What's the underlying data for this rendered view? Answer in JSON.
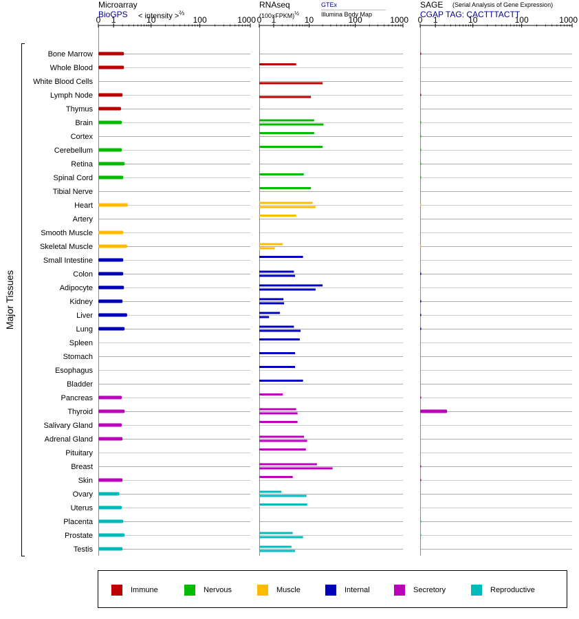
{
  "colors": {
    "immune": "#bb0000",
    "nervous": "#00bb00",
    "muscle": "#ffbb00",
    "internal": "#0000bb",
    "secretory": "#bb00bb",
    "reproductive": "#00bbbb"
  },
  "headers": {
    "microarray_title": "Microarray",
    "microarray_source": "BioGPS",
    "microarray_unit": "< intensity >",
    "microarray_exponent": "⅔",
    "rnaseq_title": "RNAseq",
    "rnaseq_unit": "(100×FPKM)",
    "rnaseq_exponent": "½",
    "rnaseq_source1": "GTEx",
    "rnaseq_source2": "Illumina Body Map",
    "sage_title": "SAGE",
    "sage_subtitle": "(Serial Analysis of Gene Expression)",
    "sage_tag": "CGAP TAG: CACTTTACTT"
  },
  "legend": [
    {
      "label": "Immune",
      "group": "immune"
    },
    {
      "label": "Nervous",
      "group": "nervous"
    },
    {
      "label": "Muscle",
      "group": "muscle"
    },
    {
      "label": "Internal",
      "group": "internal"
    },
    {
      "label": "Secretory",
      "group": "secretory"
    },
    {
      "label": "Reproductive",
      "group": "reproductive"
    }
  ],
  "chart_data": {
    "type": "bar",
    "orientation": "horizontal",
    "ylabel": "Major Tissues",
    "scale": "log1p",
    "axis_ticks": [
      "0",
      "1",
      "10",
      "100",
      "1000"
    ],
    "xlim": [
      0,
      1000
    ],
    "panels": [
      "Microarray",
      "RNAseq",
      "SAGE"
    ],
    "tissues": [
      {
        "name": "Bone Marrow",
        "group": "immune",
        "microarray": 2.2,
        "gtex": null,
        "ibm": null,
        "sage": 0.02
      },
      {
        "name": "Whole Blood",
        "group": "immune",
        "microarray": 2.2,
        "gtex": 4.9,
        "ibm": null,
        "sage": null
      },
      {
        "name": "White Blood Cells",
        "group": "immune",
        "microarray": null,
        "gtex": null,
        "ibm": 20,
        "sage": null
      },
      {
        "name": "Lymph Node",
        "group": "immune",
        "microarray": 2.0,
        "gtex": null,
        "ibm": 11,
        "sage": 0.02
      },
      {
        "name": "Thymus",
        "group": "immune",
        "microarray": 1.8,
        "gtex": null,
        "ibm": null,
        "sage": null
      },
      {
        "name": "Brain",
        "group": "nervous",
        "microarray": 1.9,
        "gtex": 13,
        "ibm": 21,
        "sage": 0.02
      },
      {
        "name": "Cortex",
        "group": "nervous",
        "microarray": null,
        "gtex": 13,
        "ibm": null,
        "sage": 0.02
      },
      {
        "name": "Cerebellum",
        "group": "nervous",
        "microarray": 1.9,
        "gtex": 20,
        "ibm": null,
        "sage": 0.02
      },
      {
        "name": "Retina",
        "group": "nervous",
        "microarray": 2.3,
        "gtex": null,
        "ibm": null,
        "sage": 0.02
      },
      {
        "name": "Spinal Cord",
        "group": "nervous",
        "microarray": 2.1,
        "gtex": 7.5,
        "ibm": null,
        "sage": 0.02
      },
      {
        "name": "Tibial Nerve",
        "group": "nervous",
        "microarray": null,
        "gtex": 11,
        "ibm": null,
        "sage": null
      },
      {
        "name": "Heart",
        "group": "muscle",
        "microarray": 2.8,
        "gtex": 12,
        "ibm": 14,
        "sage": 0.01
      },
      {
        "name": "Artery",
        "group": "muscle",
        "microarray": null,
        "gtex": 4.9,
        "ibm": null,
        "sage": null
      },
      {
        "name": "Smooth Muscle",
        "group": "muscle",
        "microarray": 2.1,
        "gtex": null,
        "ibm": null,
        "sage": null
      },
      {
        "name": "Skeletal Muscle",
        "group": "muscle",
        "microarray": 2.7,
        "gtex": 2.1,
        "ibm": 1.1,
        "sage": 0.01
      },
      {
        "name": "Small Intestine",
        "group": "internal",
        "microarray": 2.1,
        "gtex": 7.2,
        "ibm": null,
        "sage": null
      },
      {
        "name": "Colon",
        "group": "internal",
        "microarray": 2.1,
        "gtex": 4.3,
        "ibm": 4.6,
        "sage": 0.02
      },
      {
        "name": "Adipocyte",
        "group": "internal",
        "microarray": 2.2,
        "gtex": 20,
        "ibm": 14,
        "sage": null
      },
      {
        "name": "Kidney",
        "group": "internal",
        "microarray": 2.0,
        "gtex": 2.2,
        "ibm": 2.3,
        "sage": 0.02
      },
      {
        "name": "Liver",
        "group": "internal",
        "microarray": 2.7,
        "gtex": 1.7,
        "ibm": 0.6,
        "sage": 0.02
      },
      {
        "name": "Lung",
        "group": "internal",
        "microarray": 2.3,
        "gtex": 4.3,
        "ibm": 6.3,
        "sage": 0.02
      },
      {
        "name": "Spleen",
        "group": "internal",
        "microarray": null,
        "gtex": 6.0,
        "ibm": null,
        "sage": null
      },
      {
        "name": "Stomach",
        "group": "internal",
        "microarray": null,
        "gtex": 4.6,
        "ibm": null,
        "sage": null
      },
      {
        "name": "Esophagus",
        "group": "internal",
        "microarray": null,
        "gtex": 4.6,
        "ibm": null,
        "sage": null
      },
      {
        "name": "Bladder",
        "group": "internal",
        "microarray": null,
        "gtex": 7.2,
        "ibm": null,
        "sage": null
      },
      {
        "name": "Pancreas",
        "group": "secretory",
        "microarray": 1.9,
        "gtex": 2.1,
        "ibm": null,
        "sage": 0.02
      },
      {
        "name": "Thyroid",
        "group": "secretory",
        "microarray": 2.3,
        "gtex": 4.9,
        "ibm": 5.3,
        "sage": 2.4
      },
      {
        "name": "Salivary Gland",
        "group": "secretory",
        "microarray": 1.9,
        "gtex": 5.3,
        "ibm": null,
        "sage": null
      },
      {
        "name": "Adrenal Gland",
        "group": "secretory",
        "microarray": 2.0,
        "gtex": 7.6,
        "ibm": 9,
        "sage": null
      },
      {
        "name": "Pituitary",
        "group": "secretory",
        "microarray": null,
        "gtex": 8.4,
        "ibm": null,
        "sage": null
      },
      {
        "name": "Breast",
        "group": "secretory",
        "microarray": null,
        "gtex": 15,
        "ibm": 33,
        "sage": 0.02
      },
      {
        "name": "Skin",
        "group": "secretory",
        "microarray": 2.0,
        "gtex": 4.0,
        "ibm": null,
        "sage": 0.02
      },
      {
        "name": "Ovary",
        "group": "reproductive",
        "microarray": 1.6,
        "gtex": 1.9,
        "ibm": 8.7,
        "sage": null
      },
      {
        "name": "Uterus",
        "group": "reproductive",
        "microarray": 1.9,
        "gtex": 9,
        "ibm": null,
        "sage": null
      },
      {
        "name": "Placenta",
        "group": "reproductive",
        "microarray": 2.1,
        "gtex": null,
        "ibm": null,
        "sage": 0.02
      },
      {
        "name": "Prostate",
        "group": "reproductive",
        "microarray": 2.3,
        "gtex": 4.0,
        "ibm": 7.2,
        "sage": 0.02
      },
      {
        "name": "Testis",
        "group": "reproductive",
        "microarray": 2.0,
        "gtex": 3.7,
        "ibm": 4.6,
        "sage": null
      }
    ]
  }
}
